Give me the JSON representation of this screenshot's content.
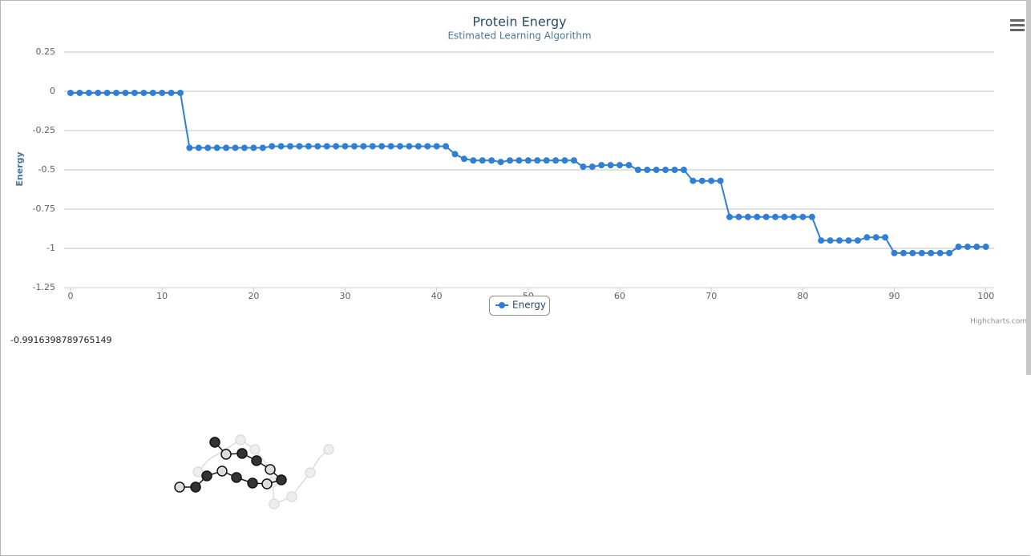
{
  "chart_data": {
    "type": "line",
    "title": "Protein Energy",
    "subtitle": "Estimated Learning Algorithm",
    "y_label": "Energy",
    "credit": "Highcharts.com",
    "x": [
      0,
      1,
      2,
      3,
      4,
      5,
      6,
      7,
      8,
      9,
      10,
      11,
      12,
      13,
      14,
      15,
      16,
      17,
      18,
      19,
      20,
      21,
      22,
      23,
      24,
      25,
      26,
      27,
      28,
      29,
      30,
      31,
      32,
      33,
      34,
      35,
      36,
      37,
      38,
      39,
      40,
      41,
      42,
      43,
      44,
      45,
      46,
      47,
      48,
      49,
      50,
      51,
      52,
      53,
      54,
      55,
      56,
      57,
      58,
      59,
      60,
      61,
      62,
      63,
      64,
      65,
      66,
      67,
      68,
      69,
      70,
      71,
      72,
      73,
      74,
      75,
      76,
      77,
      78,
      79,
      80,
      81,
      82,
      83,
      84,
      85,
      86,
      87,
      88,
      89,
      90,
      91,
      92,
      93,
      94,
      95,
      96,
      97,
      98,
      99,
      100
    ],
    "series": [
      {
        "name": "Energy",
        "color": "#2f7ed8",
        "values": [
          -0.01,
          -0.01,
          -0.01,
          -0.01,
          -0.01,
          -0.01,
          -0.01,
          -0.01,
          -0.01,
          -0.01,
          -0.01,
          -0.01,
          -0.01,
          -0.36,
          -0.36,
          -0.36,
          -0.36,
          -0.36,
          -0.36,
          -0.36,
          -0.36,
          -0.36,
          -0.35,
          -0.35,
          -0.35,
          -0.35,
          -0.35,
          -0.35,
          -0.35,
          -0.35,
          -0.35,
          -0.35,
          -0.35,
          -0.35,
          -0.35,
          -0.35,
          -0.35,
          -0.35,
          -0.35,
          -0.35,
          -0.35,
          -0.35,
          -0.4,
          -0.43,
          -0.44,
          -0.44,
          -0.44,
          -0.45,
          -0.44,
          -0.44,
          -0.44,
          -0.44,
          -0.44,
          -0.44,
          -0.44,
          -0.44,
          -0.48,
          -0.48,
          -0.47,
          -0.47,
          -0.47,
          -0.47,
          -0.5,
          -0.5,
          -0.5,
          -0.5,
          -0.5,
          -0.5,
          -0.57,
          -0.57,
          -0.57,
          -0.57,
          -0.8,
          -0.8,
          -0.8,
          -0.8,
          -0.8,
          -0.8,
          -0.8,
          -0.8,
          -0.8,
          -0.8,
          -0.95,
          -0.95,
          -0.95,
          -0.95,
          -0.95,
          -0.93,
          -0.93,
          -0.93,
          -1.03,
          -1.03,
          -1.03,
          -1.03,
          -1.03,
          -1.03,
          -1.03,
          -0.99,
          -0.99,
          -0.99,
          -0.99
        ]
      }
    ],
    "xlim": [
      -0.7,
      100.9
    ],
    "xticks": [
      0,
      10,
      20,
      30,
      40,
      50,
      60,
      70,
      80,
      90,
      100
    ],
    "ylim": [
      -1.25,
      0.25
    ],
    "yticks": [
      0.25,
      0,
      -0.25,
      -0.5,
      -0.75,
      -1,
      -1.25
    ],
    "grid": true,
    "legend": "bottom"
  },
  "energy_readout": "-0.9916398789765149"
}
